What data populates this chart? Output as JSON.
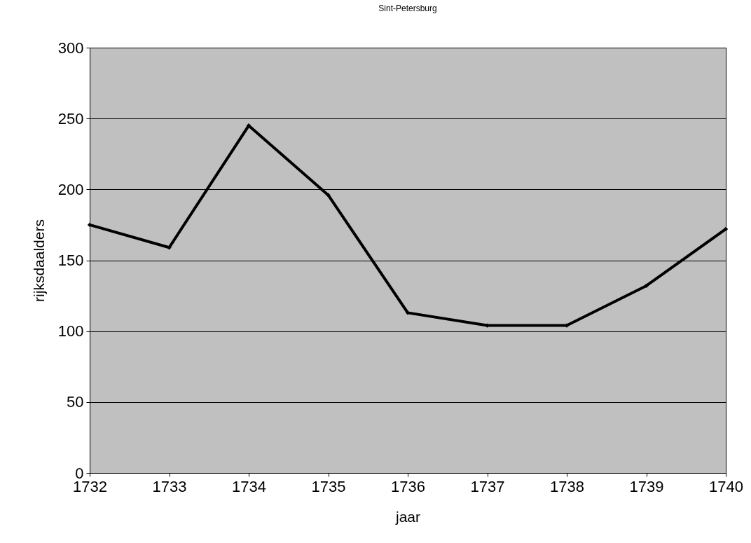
{
  "chart_data": {
    "type": "line",
    "title": "Sint-Petersburg",
    "xlabel": "jaar",
    "ylabel": "rijksdaalders",
    "x": [
      1732,
      1733,
      1734,
      1735,
      1736,
      1737,
      1738,
      1739,
      1740
    ],
    "series": [
      {
        "color": "#000000",
        "values": [
          175,
          159,
          245,
          196,
          113,
          104,
          104,
          132,
          172
        ]
      }
    ],
    "xlim": [
      1732,
      1740
    ],
    "xticks": [
      1732,
      1733,
      1734,
      1735,
      1736,
      1737,
      1738,
      1739,
      1740
    ],
    "ylim": [
      0,
      300
    ],
    "yticks": [
      0,
      50,
      100,
      150,
      200,
      250,
      300
    ],
    "grid": "y",
    "marker": "diamond",
    "line_style": "solid"
  }
}
